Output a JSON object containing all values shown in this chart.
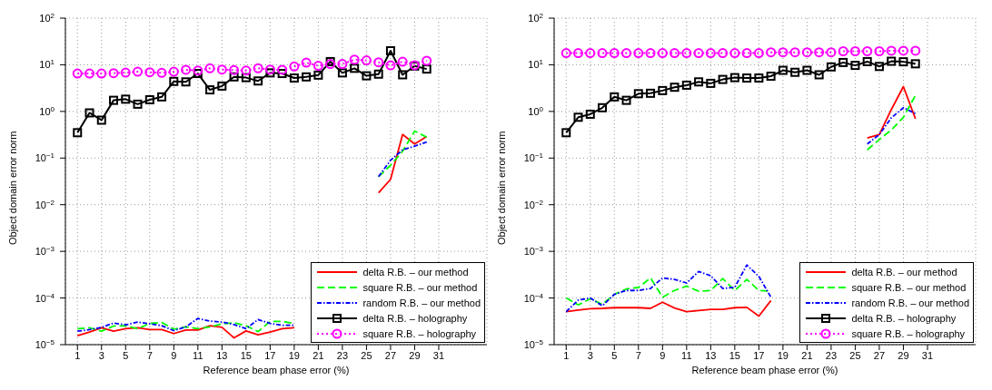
{
  "chart_data": [
    {
      "type": "line",
      "xlabel": "Reference beam phase error (%)",
      "ylabel": "Object domain error norm",
      "log": "y",
      "grid": true,
      "legend": "bottom right",
      "x": [
        1,
        2,
        3,
        4,
        5,
        6,
        7,
        8,
        9,
        10,
        11,
        12,
        13,
        14,
        15,
        16,
        17,
        18,
        19,
        20,
        21,
        22,
        23,
        24,
        25,
        26,
        27,
        28,
        29,
        30
      ],
      "xlim": [
        0,
        35
      ],
      "xticks": [
        1,
        3,
        5,
        7,
        9,
        11,
        13,
        15,
        17,
        19,
        21,
        23,
        25,
        27,
        29,
        31
      ],
      "ylim": [
        1e-05,
        100
      ],
      "yticks": [
        {
          "value": 1e-05,
          "label": "10$^{−5}$"
        },
        {
          "value": 0.0001,
          "label": "10$^{−4}$"
        },
        {
          "value": 0.001,
          "label": "10$^{−3}$"
        },
        {
          "value": 0.01,
          "label": "10$^{−2}$"
        },
        {
          "value": 0.1,
          "label": "10$^{−1}$"
        },
        {
          "value": 1,
          "label": "10$^{0}$"
        },
        {
          "value": 10,
          "label": "10$^{1}$"
        },
        {
          "value": 100,
          "label": "10$^{2}$"
        }
      ],
      "series": [
        {
          "name": "delta R.B. – our method",
          "color": "#ff0000",
          "line_style": "solid",
          "marker": "none",
          "values": [
            1.56e-05,
            1.86e-05,
            2.3e-05,
            1.94e-05,
            2.2e-05,
            2.3e-05,
            2.1e-05,
            2.1e-05,
            1.73e-05,
            2.05e-05,
            2.05e-05,
            2.55e-05,
            2.35e-05,
            1.4e-05,
            1.97e-05,
            1.63e-05,
            1.86e-05,
            2.2e-05,
            2.3e-05,
            null,
            null,
            null,
            null,
            null,
            null,
            0.018,
            0.035,
            0.32,
            0.2,
            0.29
          ]
        },
        {
          "name": "square R.B. – our method",
          "color": "#00ff00",
          "line_style": "dashed",
          "marker": "none",
          "values": [
            2.2e-05,
            2.3e-05,
            1.94e-05,
            2.5e-05,
            2.55e-05,
            2.2e-05,
            2.85e-05,
            3e-05,
            2.15e-05,
            2.4e-05,
            2.2e-05,
            2.4e-05,
            2.8e-05,
            2.95e-05,
            2.55e-05,
            1.9e-05,
            3.15e-05,
            3.15e-05,
            2.85e-05,
            null,
            null,
            null,
            null,
            null,
            null,
            0.04,
            0.07,
            0.14,
            0.38,
            0.28
          ]
        },
        {
          "name": "random R.B. – our method",
          "color": "#0000ff",
          "line_style": "dashdot",
          "marker": "none",
          "values": [
            1.94e-05,
            2.1e-05,
            2.35e-05,
            2.9e-05,
            2.65e-05,
            3.05e-05,
            2.8e-05,
            2.55e-05,
            2e-05,
            2.4e-05,
            3.65e-05,
            3.2e-05,
            3.05e-05,
            2.7e-05,
            2.2e-05,
            3.45e-05,
            2.85e-05,
            2.6e-05,
            2.6e-05,
            null,
            null,
            null,
            null,
            null,
            null,
            0.04,
            0.09,
            0.15,
            0.18,
            0.22
          ]
        },
        {
          "name": "delta R.B. – holography",
          "color": "#000000",
          "line_style": "solid",
          "marker": "square",
          "values": [
            0.35,
            0.93,
            0.65,
            1.73,
            1.83,
            1.43,
            1.78,
            2.05,
            4.4,
            4.3,
            6.5,
            2.9,
            3.5,
            5.5,
            5.3,
            4.5,
            6.7,
            6.5,
            5.2,
            5.5,
            6,
            11.7,
            6.7,
            8.4,
            5.8,
            6.3,
            20,
            6.1,
            9.4,
            8.1
          ]
        },
        {
          "name": "square R.B. – holography",
          "color": "#ff00ff",
          "line_style": "dotted",
          "marker": "circle",
          "values": [
            6.5,
            6.5,
            6.5,
            6.6,
            6.8,
            7.1,
            6.9,
            6.7,
            7.1,
            7.8,
            7.5,
            8.4,
            7.9,
            7.7,
            7.5,
            8.4,
            7.9,
            7.8,
            9.2,
            11.1,
            9.5,
            10.4,
            10.4,
            12.9,
            12.4,
            11.3,
            9.7,
            11.6,
            9.8,
            12.2
          ]
        }
      ]
    },
    {
      "type": "line",
      "xlabel": "Reference beam phase error (%)",
      "ylabel": "Object domain error norm",
      "log": "y",
      "grid": true,
      "legend": "bottom right",
      "x": [
        1,
        2,
        3,
        4,
        5,
        6,
        7,
        8,
        9,
        10,
        11,
        12,
        13,
        14,
        15,
        16,
        17,
        18,
        19,
        20,
        21,
        22,
        23,
        24,
        25,
        26,
        27,
        28,
        29,
        30
      ],
      "xlim": [
        0,
        35
      ],
      "xticks": [
        1,
        3,
        5,
        7,
        9,
        11,
        13,
        15,
        17,
        19,
        21,
        23,
        25,
        27,
        29,
        31
      ],
      "ylim": [
        1e-05,
        100
      ],
      "yticks": [
        {
          "value": 1e-05,
          "label": "10$^{−5}$"
        },
        {
          "value": 0.0001,
          "label": "10$^{−4}$"
        },
        {
          "value": 0.001,
          "label": "10$^{−3}$"
        },
        {
          "value": 0.01,
          "label": "10$^{−2}$"
        },
        {
          "value": 0.1,
          "label": "10$^{−1}$"
        },
        {
          "value": 1,
          "label": "10$^{0}$"
        },
        {
          "value": 10,
          "label": "10$^{1}$"
        },
        {
          "value": 100,
          "label": "10$^{2}$"
        }
      ],
      "series": [
        {
          "name": "delta R.B. – our method",
          "color": "#ff0000",
          "line_style": "solid",
          "marker": "none",
          "values": [
            5.1e-05,
            5.5e-05,
            5.9e-05,
            6e-05,
            6.2e-05,
            6.2e-05,
            6.2e-05,
            6e-05,
            8.1e-05,
            6.1e-05,
            5.1e-05,
            5.4e-05,
            5.7e-05,
            5.7e-05,
            6.2e-05,
            6.3e-05,
            4.1e-05,
            8.8e-05,
            null,
            null,
            null,
            null,
            null,
            null,
            null,
            0.27,
            0.32,
            1.1,
            3.4,
            0.7
          ]
        },
        {
          "name": "square R.B. – our method",
          "color": "#00ff00",
          "line_style": "dashed",
          "marker": "none",
          "values": [
            0.0001,
            7.1e-05,
            9.6e-05,
            7.3e-05,
            0.00012,
            0.000156,
            0.000168,
            0.00027,
            0.000104,
            0.000145,
            0.00018,
            0.00014,
            0.000145,
            0.00026,
            0.000145,
            0.00025,
            0.000145,
            0.00014,
            null,
            null,
            null,
            null,
            null,
            null,
            null,
            0.15,
            0.25,
            0.4,
            0.75,
            2.2
          ]
        },
        {
          "name": "random R.B. – our method",
          "color": "#0000ff",
          "line_style": "dashdot",
          "marker": "none",
          "values": [
            5.1e-05,
            9e-05,
            0.0001,
            6.8e-05,
            0.00012,
            0.000145,
            0.000145,
            0.00016,
            0.00027,
            0.00025,
            0.00021,
            0.00037,
            0.0003,
            0.00016,
            0.00017,
            0.00051,
            0.00029,
            0.000104,
            null,
            null,
            null,
            null,
            null,
            null,
            null,
            0.2,
            0.32,
            0.73,
            1.2,
            0.9
          ]
        },
        {
          "name": "delta R.B. – holography",
          "color": "#000000",
          "line_style": "solid",
          "marker": "square",
          "values": [
            0.35,
            0.75,
            0.87,
            1.2,
            2.05,
            1.73,
            2.4,
            2.45,
            2.8,
            3.3,
            3.65,
            4.3,
            4,
            4.85,
            5.3,
            5.2,
            5.2,
            5.7,
            7.6,
            6.9,
            7.6,
            6.1,
            9,
            11.2,
            9.7,
            11.7,
            9.2,
            11.9,
            11.6,
            10.5
          ]
        },
        {
          "name": "square R.B. – holography",
          "color": "#ff00ff",
          "line_style": "dotted",
          "marker": "circle",
          "values": [
            17.8,
            17.8,
            17.8,
            17.8,
            17.8,
            17.8,
            17.8,
            17.8,
            17.8,
            17.8,
            17.8,
            17.8,
            17.8,
            17.8,
            17.8,
            17.8,
            17.8,
            18.5,
            18.5,
            18.5,
            18.5,
            18.5,
            18.5,
            19.5,
            19.5,
            19.5,
            19.5,
            20,
            20,
            20
          ]
        }
      ]
    }
  ]
}
